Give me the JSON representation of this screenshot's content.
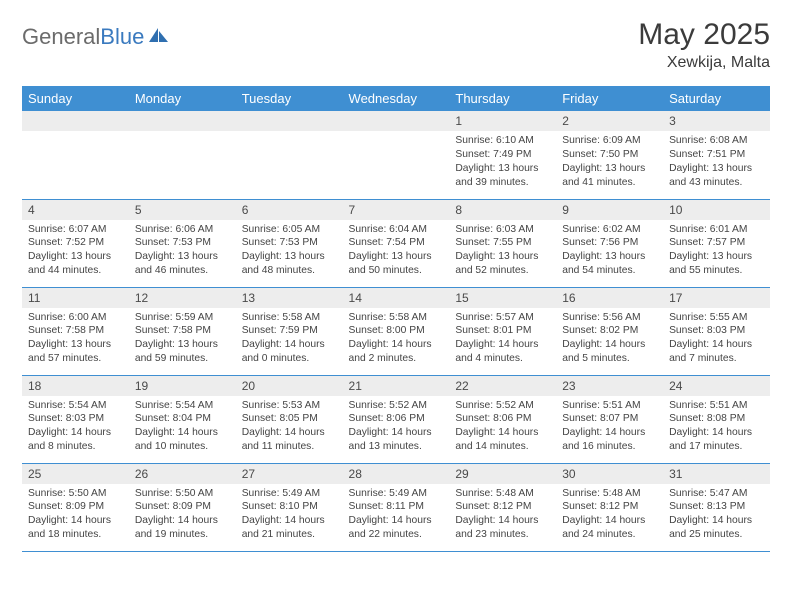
{
  "brand": {
    "part1": "General",
    "part2": "Blue"
  },
  "title": "May 2025",
  "location": "Xewkija, Malta",
  "colors": {
    "header_bg": "#3f8fd2",
    "header_text": "#ffffff",
    "daynum_bg": "#ededed",
    "text": "#444444",
    "rule": "#3f8fd2"
  },
  "day_headers": [
    "Sunday",
    "Monday",
    "Tuesday",
    "Wednesday",
    "Thursday",
    "Friday",
    "Saturday"
  ],
  "weeks": [
    [
      null,
      null,
      null,
      null,
      {
        "n": "1",
        "sunrise": "6:10 AM",
        "sunset": "7:49 PM",
        "dl": "13 hours and 39 minutes."
      },
      {
        "n": "2",
        "sunrise": "6:09 AM",
        "sunset": "7:50 PM",
        "dl": "13 hours and 41 minutes."
      },
      {
        "n": "3",
        "sunrise": "6:08 AM",
        "sunset": "7:51 PM",
        "dl": "13 hours and 43 minutes."
      }
    ],
    [
      {
        "n": "4",
        "sunrise": "6:07 AM",
        "sunset": "7:52 PM",
        "dl": "13 hours and 44 minutes."
      },
      {
        "n": "5",
        "sunrise": "6:06 AM",
        "sunset": "7:53 PM",
        "dl": "13 hours and 46 minutes."
      },
      {
        "n": "6",
        "sunrise": "6:05 AM",
        "sunset": "7:53 PM",
        "dl": "13 hours and 48 minutes."
      },
      {
        "n": "7",
        "sunrise": "6:04 AM",
        "sunset": "7:54 PM",
        "dl": "13 hours and 50 minutes."
      },
      {
        "n": "8",
        "sunrise": "6:03 AM",
        "sunset": "7:55 PM",
        "dl": "13 hours and 52 minutes."
      },
      {
        "n": "9",
        "sunrise": "6:02 AM",
        "sunset": "7:56 PM",
        "dl": "13 hours and 54 minutes."
      },
      {
        "n": "10",
        "sunrise": "6:01 AM",
        "sunset": "7:57 PM",
        "dl": "13 hours and 55 minutes."
      }
    ],
    [
      {
        "n": "11",
        "sunrise": "6:00 AM",
        "sunset": "7:58 PM",
        "dl": "13 hours and 57 minutes."
      },
      {
        "n": "12",
        "sunrise": "5:59 AM",
        "sunset": "7:58 PM",
        "dl": "13 hours and 59 minutes."
      },
      {
        "n": "13",
        "sunrise": "5:58 AM",
        "sunset": "7:59 PM",
        "dl": "14 hours and 0 minutes."
      },
      {
        "n": "14",
        "sunrise": "5:58 AM",
        "sunset": "8:00 PM",
        "dl": "14 hours and 2 minutes."
      },
      {
        "n": "15",
        "sunrise": "5:57 AM",
        "sunset": "8:01 PM",
        "dl": "14 hours and 4 minutes."
      },
      {
        "n": "16",
        "sunrise": "5:56 AM",
        "sunset": "8:02 PM",
        "dl": "14 hours and 5 minutes."
      },
      {
        "n": "17",
        "sunrise": "5:55 AM",
        "sunset": "8:03 PM",
        "dl": "14 hours and 7 minutes."
      }
    ],
    [
      {
        "n": "18",
        "sunrise": "5:54 AM",
        "sunset": "8:03 PM",
        "dl": "14 hours and 8 minutes."
      },
      {
        "n": "19",
        "sunrise": "5:54 AM",
        "sunset": "8:04 PM",
        "dl": "14 hours and 10 minutes."
      },
      {
        "n": "20",
        "sunrise": "5:53 AM",
        "sunset": "8:05 PM",
        "dl": "14 hours and 11 minutes."
      },
      {
        "n": "21",
        "sunrise": "5:52 AM",
        "sunset": "8:06 PM",
        "dl": "14 hours and 13 minutes."
      },
      {
        "n": "22",
        "sunrise": "5:52 AM",
        "sunset": "8:06 PM",
        "dl": "14 hours and 14 minutes."
      },
      {
        "n": "23",
        "sunrise": "5:51 AM",
        "sunset": "8:07 PM",
        "dl": "14 hours and 16 minutes."
      },
      {
        "n": "24",
        "sunrise": "5:51 AM",
        "sunset": "8:08 PM",
        "dl": "14 hours and 17 minutes."
      }
    ],
    [
      {
        "n": "25",
        "sunrise": "5:50 AM",
        "sunset": "8:09 PM",
        "dl": "14 hours and 18 minutes."
      },
      {
        "n": "26",
        "sunrise": "5:50 AM",
        "sunset": "8:09 PM",
        "dl": "14 hours and 19 minutes."
      },
      {
        "n": "27",
        "sunrise": "5:49 AM",
        "sunset": "8:10 PM",
        "dl": "14 hours and 21 minutes."
      },
      {
        "n": "28",
        "sunrise": "5:49 AM",
        "sunset": "8:11 PM",
        "dl": "14 hours and 22 minutes."
      },
      {
        "n": "29",
        "sunrise": "5:48 AM",
        "sunset": "8:12 PM",
        "dl": "14 hours and 23 minutes."
      },
      {
        "n": "30",
        "sunrise": "5:48 AM",
        "sunset": "8:12 PM",
        "dl": "14 hours and 24 minutes."
      },
      {
        "n": "31",
        "sunrise": "5:47 AM",
        "sunset": "8:13 PM",
        "dl": "14 hours and 25 minutes."
      }
    ]
  ],
  "labels": {
    "sunrise": "Sunrise: ",
    "sunset": "Sunset: ",
    "daylight": "Daylight: "
  }
}
